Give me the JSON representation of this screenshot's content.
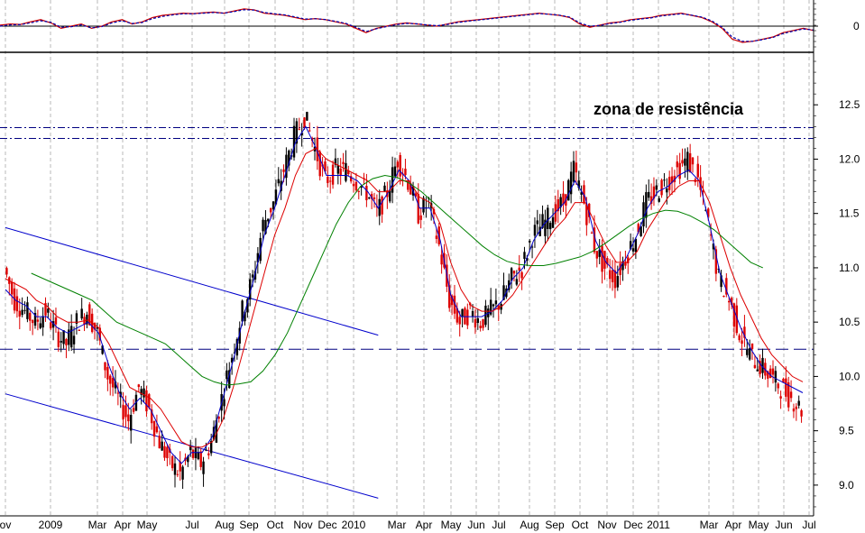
{
  "chart_data": [
    {
      "type": "line",
      "panel": "oscillator",
      "y_ticks": [
        "0"
      ],
      "ylim": [
        -1,
        1
      ],
      "grid": true,
      "series": [
        {
          "values": [
            0.05,
            0.1,
            0.08,
            0.2,
            0.3,
            0.15,
            -0.1,
            0.0,
            0.1,
            -0.1,
            0.0,
            0.2,
            0.3,
            0.1,
            0.2,
            0.4,
            0.5,
            0.55,
            0.6,
            0.58,
            0.62,
            0.65,
            0.6,
            0.7,
            0.8,
            0.75,
            0.6,
            0.55,
            0.5,
            0.4,
            0.3,
            0.35,
            0.3,
            0.2,
            0.1,
            -0.1,
            -0.3,
            -0.1,
            0.0,
            0.1,
            0.15,
            0.1,
            0.05,
            0.0,
            0.1,
            0.2,
            0.25,
            0.3,
            0.35,
            0.4,
            0.45,
            0.5,
            0.55,
            0.6,
            0.55,
            0.5,
            0.4,
            0.1,
            -0.05,
            0.05,
            0.15,
            0.2,
            0.3,
            0.35,
            0.4,
            0.5,
            0.55,
            0.6,
            0.5,
            0.4,
            0.2,
            -0.1,
            -0.6,
            -0.75,
            -0.7,
            -0.6,
            -0.5,
            -0.3,
            -0.2,
            -0.1,
            -0.2
          ]
        },
        {
          "values": [
            0.0,
            0.06,
            0.07,
            0.15,
            0.25,
            0.18,
            -0.05,
            -0.03,
            0.06,
            -0.08,
            -0.02,
            0.15,
            0.25,
            0.12,
            0.17,
            0.35,
            0.45,
            0.52,
            0.57,
            0.57,
            0.6,
            0.63,
            0.6,
            0.67,
            0.76,
            0.74,
            0.63,
            0.57,
            0.52,
            0.43,
            0.33,
            0.34,
            0.31,
            0.22,
            0.13,
            -0.05,
            -0.25,
            -0.12,
            -0.02,
            0.07,
            0.13,
            0.11,
            0.06,
            0.02,
            0.08,
            0.17,
            0.23,
            0.28,
            0.33,
            0.38,
            0.43,
            0.48,
            0.53,
            0.58,
            0.55,
            0.51,
            0.42,
            0.15,
            0.0,
            0.03,
            0.12,
            0.18,
            0.27,
            0.33,
            0.38,
            0.47,
            0.52,
            0.57,
            0.51,
            0.42,
            0.24,
            -0.05,
            -0.5,
            -0.7,
            -0.7,
            -0.62,
            -0.52,
            -0.34,
            -0.23,
            -0.13,
            -0.18
          ]
        }
      ]
    },
    {
      "type": "candlestick",
      "panel": "price",
      "x_labels": [
        "ov",
        "2009",
        "Mar",
        "Apr",
        "May",
        "Jul",
        "Aug",
        "Sep",
        "Oct",
        "Nov",
        "Dec",
        "2010",
        "Mar",
        "Apr",
        "May",
        "Jun",
        "Jul",
        "Aug",
        "Sep",
        "Oct",
        "Nov",
        "Dec",
        "2011",
        "Mar",
        "Apr",
        "May",
        "Jun",
        "Jul"
      ],
      "y_ticks": [
        "12.5",
        "12.0",
        "11.5",
        "11.0",
        "10.5",
        "10.0",
        "9.5",
        "9.0"
      ],
      "ylim": [
        8.75,
        12.95
      ],
      "grid": true,
      "annotation": "zona de resistência",
      "resistance_lines": [
        12.29,
        12.19
      ],
      "support_line": 10.25,
      "channel_lines": [
        {
          "from": [
            0,
            11.37
          ],
          "to": [
            36,
            10.38
          ]
        },
        {
          "from": [
            0,
            9.84
          ],
          "to": [
            36,
            8.88
          ]
        }
      ],
      "close_series": [
        11.0,
        10.7,
        10.6,
        10.5,
        10.6,
        10.4,
        10.3,
        10.5,
        10.6,
        10.4,
        10.0,
        9.8,
        9.6,
        9.9,
        9.7,
        9.4,
        9.2,
        9.1,
        9.3,
        9.2,
        9.4,
        9.8,
        10.2,
        10.6,
        10.9,
        11.4,
        11.6,
        11.9,
        12.2,
        12.4,
        12.1,
        11.8,
        11.9,
        11.9,
        11.8,
        11.7,
        11.5,
        11.7,
        12.0,
        11.8,
        11.5,
        11.6,
        11.2,
        10.7,
        10.5,
        10.6,
        10.5,
        10.6,
        10.7,
        10.9,
        11.0,
        11.3,
        11.4,
        11.5,
        11.6,
        11.9,
        11.6,
        11.2,
        11.0,
        10.9,
        11.1,
        11.3,
        11.6,
        11.7,
        11.8,
        11.9,
        12.0,
        11.8,
        11.4,
        10.9,
        10.7,
        10.4,
        10.2,
        10.1,
        10.0,
        9.9,
        9.8,
        9.7
      ],
      "series": [
        {
          "values": [
            10.8,
            10.7,
            10.65,
            10.55,
            10.55,
            10.45,
            10.4,
            10.45,
            10.5,
            10.4,
            10.1,
            9.85,
            9.7,
            9.8,
            9.7,
            9.5,
            9.3,
            9.2,
            9.3,
            9.3,
            9.45,
            9.8,
            10.15,
            10.55,
            10.9,
            11.3,
            11.55,
            11.85,
            12.15,
            12.3,
            12.1,
            11.85,
            11.85,
            11.85,
            11.8,
            11.7,
            11.55,
            11.7,
            11.9,
            11.8,
            11.55,
            11.55,
            11.25,
            10.75,
            10.55,
            10.55,
            10.55,
            10.6,
            10.7,
            10.9,
            11.0,
            11.25,
            11.4,
            11.5,
            11.6,
            11.8,
            11.65,
            11.25,
            11.05,
            10.95,
            11.1,
            11.3,
            11.55,
            11.7,
            11.75,
            11.85,
            11.9,
            11.8,
            11.4,
            10.95,
            10.7,
            10.45,
            10.25,
            10.1,
            10.0,
            9.95,
            9.9,
            9.85
          ]
        },
        {
          "values": [
            10.9,
            10.85,
            10.8,
            10.7,
            10.65,
            10.55,
            10.5,
            10.5,
            10.52,
            10.45,
            10.3,
            10.1,
            9.9,
            9.85,
            9.8,
            9.7,
            9.55,
            9.4,
            9.35,
            9.35,
            9.4,
            9.6,
            9.9,
            10.25,
            10.6,
            10.95,
            11.3,
            11.55,
            11.85,
            12.05,
            12.1,
            12.0,
            11.95,
            11.9,
            11.85,
            11.8,
            11.7,
            11.7,
            11.8,
            11.8,
            11.65,
            11.6,
            11.4,
            11.05,
            10.8,
            10.65,
            10.6,
            10.6,
            10.65,
            10.75,
            10.9,
            11.05,
            11.2,
            11.35,
            11.45,
            11.6,
            11.6,
            11.4,
            11.2,
            11.05,
            11.05,
            11.15,
            11.35,
            11.5,
            11.65,
            11.75,
            11.8,
            11.8,
            11.6,
            11.3,
            11.0,
            10.75,
            10.55,
            10.35,
            10.2,
            10.1,
            10.0,
            9.95
          ]
        },
        {
          "values": [
            10.95,
            10.9,
            10.85,
            10.8,
            10.75,
            10.7,
            10.6,
            10.5,
            10.45,
            10.4,
            10.35,
            10.3,
            10.2,
            10.1,
            10.0,
            9.95,
            9.92,
            9.93,
            9.95,
            10.05,
            10.2,
            10.4,
            10.65,
            10.9,
            11.15,
            11.4,
            11.6,
            11.75,
            11.82,
            11.85,
            11.83,
            11.78,
            11.7,
            11.6,
            11.5,
            11.4,
            11.3,
            11.2,
            11.12,
            11.06,
            11.03,
            11.02,
            11.02,
            11.04,
            11.07,
            11.1,
            11.15,
            11.22,
            11.3,
            11.38,
            11.45,
            11.5,
            11.53,
            11.52,
            11.48,
            11.42,
            11.35,
            11.25,
            11.15,
            11.05,
            11.0
          ]
        }
      ]
    }
  ]
}
